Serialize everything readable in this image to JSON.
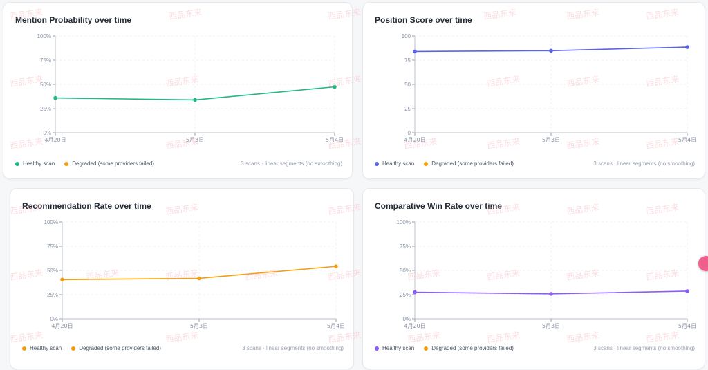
{
  "colors": {
    "healthy_green": "#20b981",
    "healthy_indigo": "#5b63e8",
    "healthy_orange": "#f59e0b",
    "healthy_purple": "#8b5cf6",
    "degraded": "#f59e0b"
  },
  "watermark_text": "西品东来",
  "chart_data": [
    {
      "type": "line",
      "title": "Mention Probability over time",
      "x": [
        "4月20日",
        "5月3日",
        "5月4日"
      ],
      "y_ticks": [
        "100%",
        "75%",
        "50%",
        "25%",
        "0%"
      ],
      "ylim": [
        0,
        100
      ],
      "series": [
        {
          "values": [
            36,
            34,
            47.5
          ]
        }
      ],
      "legend": {
        "healthy": "Healthy scan",
        "degraded": "Degraded (some providers failed)"
      },
      "note": "3 scans · linear segments (no smoothing)"
    },
    {
      "type": "line",
      "title": "Position Score over time",
      "x": [
        "4月20日",
        "5月3日",
        "5月4日"
      ],
      "y_ticks": [
        "100",
        "75",
        "50",
        "25",
        "0"
      ],
      "ylim": [
        0,
        100
      ],
      "series": [
        {
          "values": [
            84,
            84.8,
            88.5
          ]
        }
      ],
      "legend": {
        "healthy": "Healthy scan",
        "degraded": "Degraded (some providers failed)"
      },
      "note": "3 scans · linear segments (no smoothing)"
    },
    {
      "type": "line",
      "title": "Recommendation Rate over time",
      "x": [
        "4月20日",
        "5月3日",
        "5月4日"
      ],
      "y_ticks": [
        "100%",
        "75%",
        "50%",
        "25%",
        "0%"
      ],
      "ylim": [
        0,
        100
      ],
      "series": [
        {
          "values": [
            40.5,
            41.8,
            54.2
          ]
        }
      ],
      "legend": {
        "healthy": "Healthy scan",
        "degraded": "Degraded (some providers failed)"
      },
      "note": "3 scans · linear segments (no smoothing)"
    },
    {
      "type": "line",
      "title": "Comparative Win Rate over time",
      "x": [
        "4月20日",
        "5月3日",
        "5月4日"
      ],
      "y_ticks": [
        "100%",
        "75%",
        "50%",
        "25%",
        "0%"
      ],
      "ylim": [
        0,
        100
      ],
      "series": [
        {
          "values": [
            27.5,
            25.8,
            28.6
          ]
        }
      ],
      "legend": {
        "healthy": "Healthy scan",
        "degraded": "Degraded (some providers failed)"
      },
      "note": "3 scans · linear segments (no smoothing)"
    }
  ]
}
